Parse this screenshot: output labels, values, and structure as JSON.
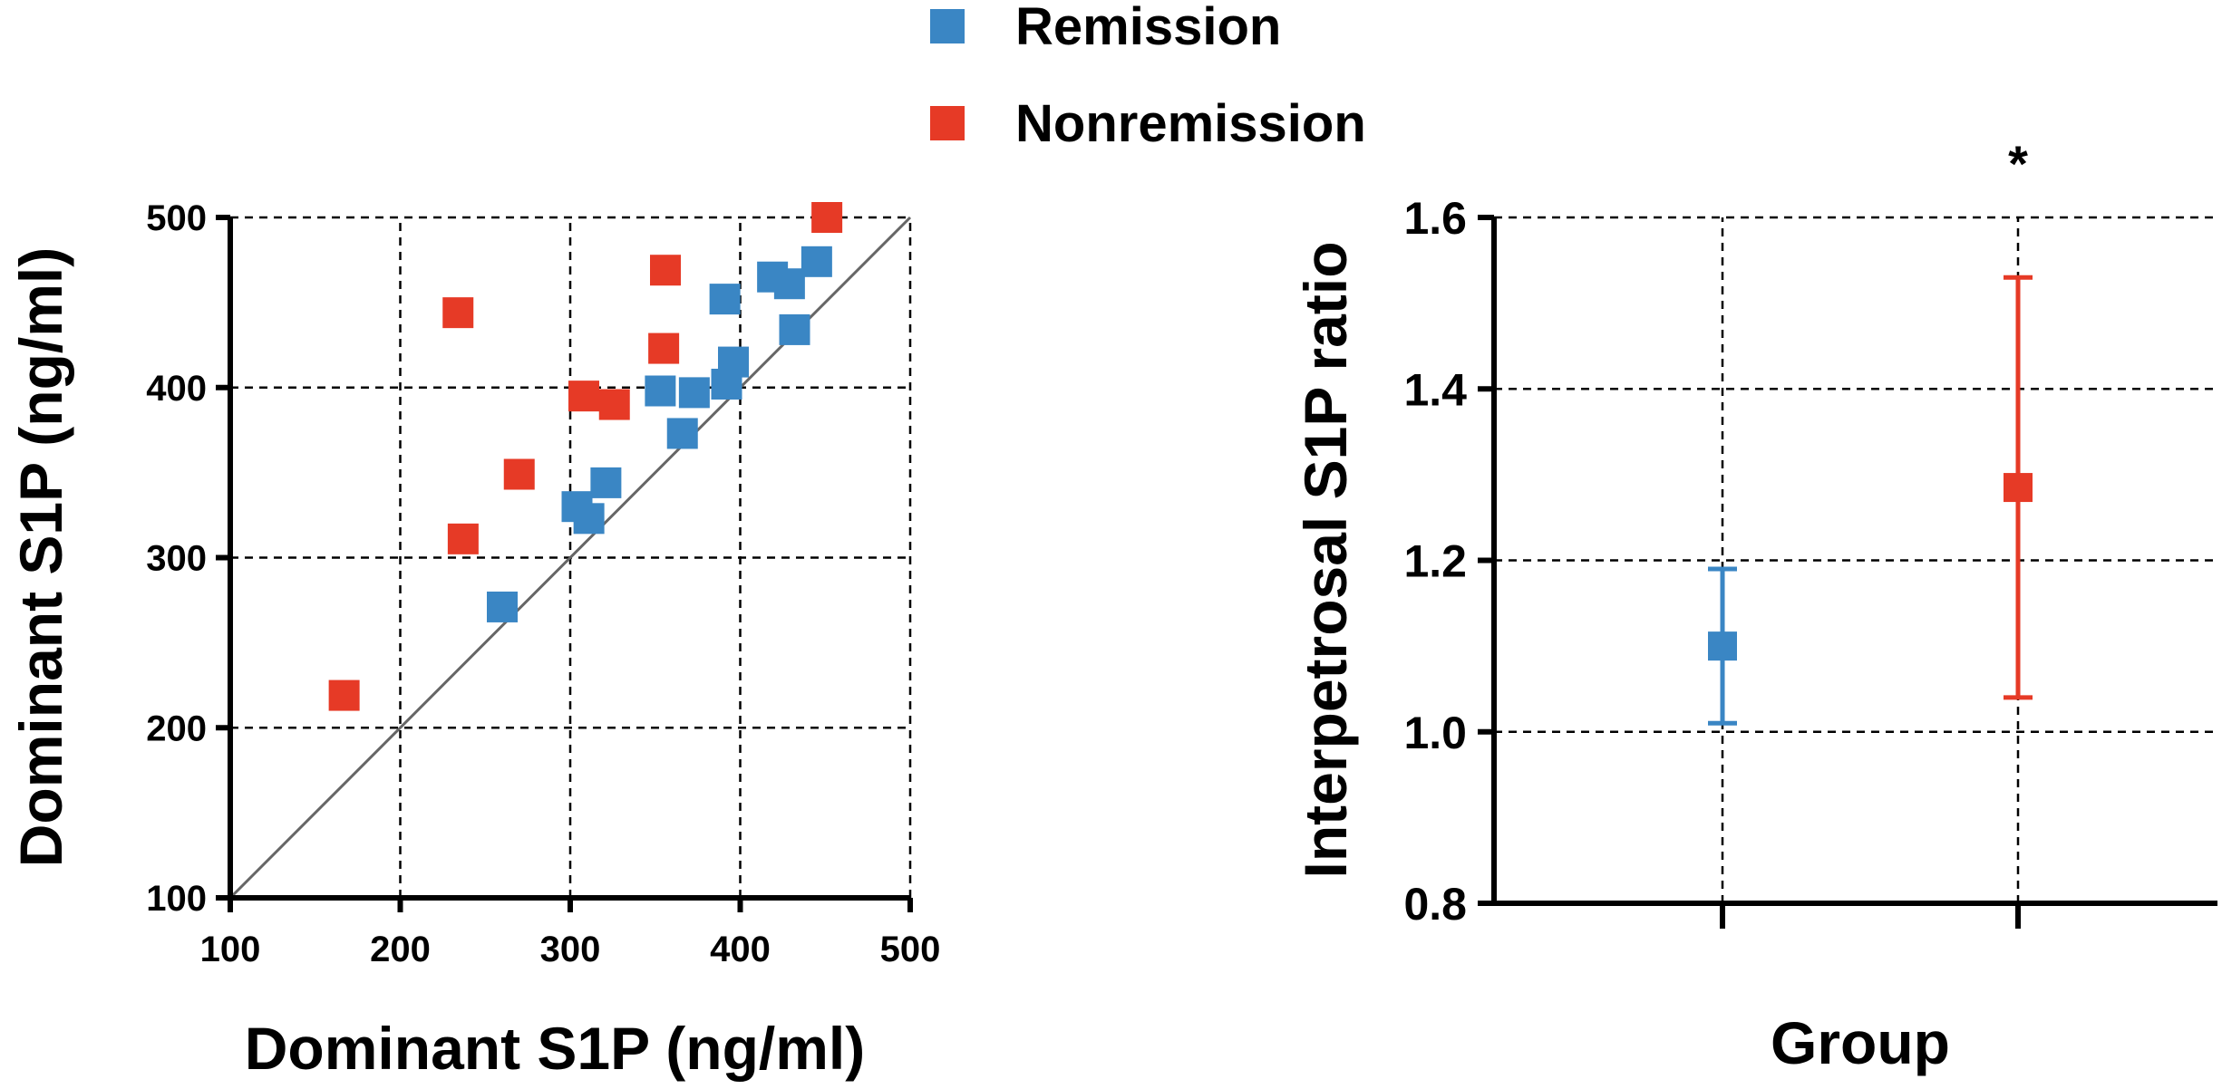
{
  "legend": {
    "items": [
      {
        "label": "Remission",
        "color": "#3A86C4"
      },
      {
        "label": "Nonremission",
        "color": "#E63A26"
      }
    ]
  },
  "chart_data": [
    {
      "type": "scatter",
      "title": "",
      "xlabel": "Dominant S1P (ng/ml)",
      "ylabel": "Dominant S1P (ng/ml)",
      "xlim": [
        100,
        500
      ],
      "ylim": [
        100,
        500
      ],
      "xticks": [
        "100",
        "200",
        "300",
        "400",
        "500"
      ],
      "yticks": [
        "100",
        "200",
        "300",
        "400",
        "500"
      ],
      "grid": true,
      "reference_line": "identity (y = x)",
      "series": [
        {
          "name": "Remission",
          "color": "#3A86C4",
          "points": [
            {
              "x": 260,
              "y": 271
            },
            {
              "x": 304,
              "y": 330
            },
            {
              "x": 311,
              "y": 323
            },
            {
              "x": 321,
              "y": 344
            },
            {
              "x": 353,
              "y": 398
            },
            {
              "x": 366,
              "y": 373
            },
            {
              "x": 373,
              "y": 397
            },
            {
              "x": 391,
              "y": 452
            },
            {
              "x": 392,
              "y": 402
            },
            {
              "x": 396,
              "y": 415
            },
            {
              "x": 419,
              "y": 465
            },
            {
              "x": 429,
              "y": 461
            },
            {
              "x": 432,
              "y": 434
            },
            {
              "x": 445,
              "y": 474
            }
          ]
        },
        {
          "name": "Nonremission",
          "color": "#E63A26",
          "points": [
            {
              "x": 167,
              "y": 219
            },
            {
              "x": 234,
              "y": 444
            },
            {
              "x": 237,
              "y": 311
            },
            {
              "x": 270,
              "y": 349
            },
            {
              "x": 308,
              "y": 395
            },
            {
              "x": 326,
              "y": 390
            },
            {
              "x": 355,
              "y": 423
            },
            {
              "x": 356,
              "y": 469
            },
            {
              "x": 451,
              "y": 500
            }
          ]
        }
      ]
    },
    {
      "type": "errorbar",
      "title": "",
      "xlabel": "Group",
      "ylabel": "Interpetrosal S1P ratio",
      "ylim": [
        0.8,
        1.6
      ],
      "yticks": [
        "0.8",
        "1.0",
        "1.2",
        "1.4",
        "1.6"
      ],
      "grid": true,
      "series": [
        {
          "name": "Remission",
          "color": "#3A86C4",
          "mean": 1.1,
          "lower": 1.01,
          "upper": 1.19
        },
        {
          "name": "Nonremission",
          "color": "#E63A26",
          "mean": 1.285,
          "lower": 1.04,
          "upper": 1.53,
          "annotation": "*"
        }
      ]
    }
  ]
}
